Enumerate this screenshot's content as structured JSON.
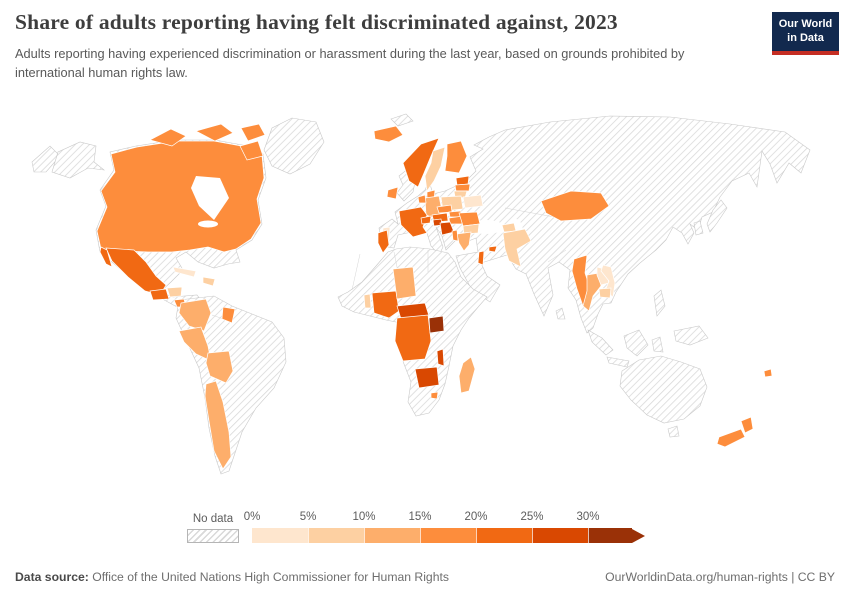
{
  "header": {
    "title": "Share of adults reporting having felt discriminated against, 2023",
    "subtitle": "Adults reporting having experienced discrimination or harassment during the last year, based on grounds prohibited by international human rights law.",
    "logo": {
      "line1": "Our World",
      "line2": "in Data"
    }
  },
  "legend": {
    "no_data_label": "No data",
    "bins": [
      {
        "range": "0-5%",
        "tick": "0%",
        "color": "#fee6ce"
      },
      {
        "range": "5-10%",
        "tick": "5%",
        "color": "#fdd0a2"
      },
      {
        "range": "10-15%",
        "tick": "10%",
        "color": "#fdae6b"
      },
      {
        "range": "15-20%",
        "tick": "15%",
        "color": "#fd8d3c"
      },
      {
        "range": "20-25%",
        "tick": "20%",
        "color": "#f16913"
      },
      {
        "range": "25-30%",
        "tick": "25%",
        "color": "#d94801"
      },
      {
        "range": "30%+",
        "tick": "30%",
        "color": "#9a3107"
      }
    ]
  },
  "footer": {
    "source_label": "Data source:",
    "source_text": "Office of the United Nations High Commissioner for Human Rights",
    "right_text": "OurWorldinData.org/human-rights | CC BY"
  },
  "colors": {
    "logo_navy": "#12294e",
    "logo_red": "#c52e23",
    "no_data_hatch": "#d9d9d9",
    "land_border": "#c9c9c9"
  },
  "chart_data": {
    "type": "choropleth",
    "title": "Share of adults reporting having felt discriminated against",
    "year": "2023",
    "unit": "%",
    "legend_bins": [
      "0-5%",
      "5-10%",
      "10-15%",
      "15-20%",
      "20-25%",
      "25-30%",
      "30%+"
    ],
    "regions": [
      {
        "name": "Canada",
        "bin": "15-20%"
      },
      {
        "name": "Mexico",
        "bin": "20-25%"
      },
      {
        "name": "Guatemala",
        "bin": "20-25%"
      },
      {
        "name": "Honduras",
        "bin": "5-10%"
      },
      {
        "name": "Costa Rica",
        "bin": "15-20%"
      },
      {
        "name": "Panama",
        "bin": "15-20%"
      },
      {
        "name": "Cuba",
        "bin": "0-5%"
      },
      {
        "name": "Dominican Republic",
        "bin": "5-10%"
      },
      {
        "name": "Colombia",
        "bin": "10-15%"
      },
      {
        "name": "Guyana",
        "bin": "15-20%"
      },
      {
        "name": "Peru",
        "bin": "10-15%"
      },
      {
        "name": "Bolivia",
        "bin": "10-15%"
      },
      {
        "name": "Chile",
        "bin": "10-15%"
      },
      {
        "name": "Iceland",
        "bin": "15-20%"
      },
      {
        "name": "Ireland",
        "bin": "15-20%"
      },
      {
        "name": "Norway",
        "bin": "20-25%"
      },
      {
        "name": "Sweden",
        "bin": "5-10%"
      },
      {
        "name": "Finland",
        "bin": "15-20%"
      },
      {
        "name": "Denmark",
        "bin": "15-20%"
      },
      {
        "name": "Estonia",
        "bin": "20-25%"
      },
      {
        "name": "Latvia",
        "bin": "15-20%"
      },
      {
        "name": "Lithuania",
        "bin": "5-10%"
      },
      {
        "name": "Belarus",
        "bin": "0-5%"
      },
      {
        "name": "Poland",
        "bin": "5-10%"
      },
      {
        "name": "Germany",
        "bin": "10-15%"
      },
      {
        "name": "Netherlands",
        "bin": "15-20%"
      },
      {
        "name": "France",
        "bin": "20-25%"
      },
      {
        "name": "Portugal",
        "bin": "0-5%"
      },
      {
        "name": "Switzerland",
        "bin": "20-25%"
      },
      {
        "name": "Austria",
        "bin": "20-25%"
      },
      {
        "name": "Czechia",
        "bin": "15-20%"
      },
      {
        "name": "Slovakia",
        "bin": "15-20%"
      },
      {
        "name": "Hungary",
        "bin": "15-20%"
      },
      {
        "name": "Slovenia",
        "bin": "25-30%"
      },
      {
        "name": "Croatia",
        "bin": "25-30%"
      },
      {
        "name": "Romania",
        "bin": "15-20%"
      },
      {
        "name": "Bulgaria",
        "bin": "5-10%"
      },
      {
        "name": "Greece",
        "bin": "10-15%"
      },
      {
        "name": "Albania",
        "bin": "15-20%"
      },
      {
        "name": "Cyprus",
        "bin": "20-25%"
      },
      {
        "name": "Azerbaijan",
        "bin": "5-10%"
      },
      {
        "name": "Israel",
        "bin": "20-25%"
      },
      {
        "name": "Tunisia",
        "bin": "20-25%"
      },
      {
        "name": "Benin",
        "bin": "5-10%"
      },
      {
        "name": "Nigeria",
        "bin": "20-25%"
      },
      {
        "name": "Chad",
        "bin": "10-15%"
      },
      {
        "name": "Central African Republic",
        "bin": "25-30%"
      },
      {
        "name": "Democratic Republic of Congo",
        "bin": "20-25%"
      },
      {
        "name": "Uganda",
        "bin": "30%+"
      },
      {
        "name": "Zimbabwe",
        "bin": "25-30%"
      },
      {
        "name": "Malawi",
        "bin": "25-30%"
      },
      {
        "name": "Eswatini",
        "bin": "15-20%"
      },
      {
        "name": "Madagascar",
        "bin": "10-15%"
      },
      {
        "name": "Pakistan",
        "bin": "5-10%"
      },
      {
        "name": "Mongolia",
        "bin": "15-20%"
      },
      {
        "name": "Myanmar",
        "bin": "15-20%"
      },
      {
        "name": "Thailand",
        "bin": "10-15%"
      },
      {
        "name": "Laos",
        "bin": "0-5%"
      },
      {
        "name": "Vietnam",
        "bin": "0-5%"
      },
      {
        "name": "Cambodia",
        "bin": "5-10%"
      },
      {
        "name": "New Zealand",
        "bin": "15-20%"
      },
      {
        "name": "Fiji",
        "bin": "15-20%"
      }
    ],
    "no_data_regions": [
      "United States",
      "Greenland",
      "Brazil",
      "Argentina",
      "Venezuela",
      "Ecuador",
      "Paraguay",
      "Uruguay",
      "United Kingdom",
      "Spain",
      "Italy",
      "Ukraine",
      "Turkey",
      "Russia",
      "Kazakhstan",
      "China",
      "India",
      "Japan",
      "South Korea",
      "Indonesia",
      "Australia",
      "Papua New Guinea",
      "Philippines",
      "Sri Lanka",
      "Saudi Arabia",
      "Iran",
      "Iraq",
      "Egypt",
      "Libya",
      "Algeria",
      "Morocco",
      "Mali",
      "Niger",
      "Sudan",
      "Ethiopia",
      "Kenya",
      "Tanzania",
      "South Africa"
    ]
  }
}
